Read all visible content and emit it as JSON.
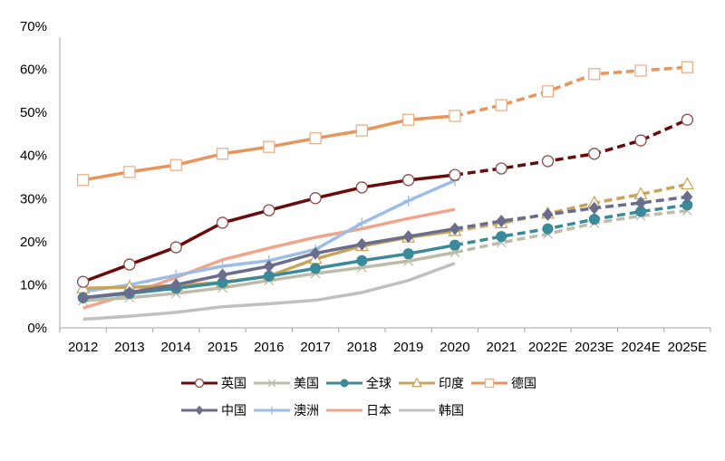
{
  "chart_data": {
    "type": "line",
    "title": "",
    "xlabel": "",
    "ylabel": "",
    "categories": [
      "2012",
      "2013",
      "2014",
      "2015",
      "2016",
      "2017",
      "2018",
      "2019",
      "2020",
      "2021",
      "2022E",
      "2023E",
      "2024E",
      "2025E"
    ],
    "ylim": [
      0,
      70
    ],
    "yticks": [
      "0%",
      "10%",
      "20%",
      "30%",
      "40%",
      "50%",
      "60%",
      "70%"
    ],
    "ytick_values": [
      0,
      10,
      20,
      30,
      40,
      50,
      60,
      70
    ],
    "grid": false,
    "forecast_start_index": 8,
    "legend_position": "bottom",
    "series": [
      {
        "name": "英国",
        "color": "#6b0a0a",
        "marker": "circle-open",
        "dashed_forecast": true,
        "values": [
          10.7,
          14.7,
          18.7,
          24.4,
          27.3,
          30.1,
          32.6,
          34.3,
          35.5,
          37.0,
          38.7,
          40.4,
          43.5,
          48.3
        ]
      },
      {
        "name": "美国",
        "color": "#bdbcaa",
        "marker": "x",
        "dashed_forecast": true,
        "values": [
          6.3,
          7.0,
          8.0,
          9.3,
          11.0,
          12.6,
          14.0,
          15.5,
          17.5,
          19.8,
          21.8,
          24.3,
          26.0,
          27.2
        ]
      },
      {
        "name": "全球",
        "color": "#3a8a9a",
        "marker": "dot",
        "dashed_forecast": true,
        "values": [
          7.0,
          8.0,
          9.2,
          10.5,
          12.0,
          13.8,
          15.6,
          17.2,
          19.2,
          21.2,
          23.0,
          25.2,
          27.0,
          28.5
        ]
      },
      {
        "name": "印度",
        "color": "#c8a45a",
        "marker": "triangle-open",
        "dashed_forecast": true,
        "values": [
          9.2,
          9.4,
          9.8,
          10.6,
          12.0,
          16.0,
          19.0,
          21.0,
          22.5,
          24.3,
          26.5,
          29.0,
          31.0,
          33.3
        ]
      },
      {
        "name": "德国",
        "color": "#e8945a",
        "marker": "square-open",
        "dashed_forecast": true,
        "values": [
          34.3,
          36.2,
          37.8,
          40.4,
          42.0,
          44.0,
          45.8,
          48.3,
          49.2,
          51.7,
          54.9,
          58.9,
          59.7,
          60.5
        ]
      },
      {
        "name": "中国",
        "color": "#6a6e8c",
        "marker": "diamond",
        "dashed_forecast": true,
        "values": [
          7.0,
          8.2,
          10.0,
          12.3,
          14.3,
          17.3,
          19.4,
          21.2,
          23.0,
          24.8,
          26.3,
          27.8,
          29.0,
          30.4
        ]
      },
      {
        "name": "澳洲",
        "color": "#9dbde6",
        "marker": "plus",
        "dashed_forecast": false,
        "values": [
          8.4,
          10.0,
          12.2,
          14.3,
          15.6,
          18.2,
          24.3,
          29.5,
          34.2,
          null,
          null,
          null,
          null,
          null
        ]
      },
      {
        "name": "日本",
        "color": "#f0a48c",
        "marker": "none",
        "dashed_forecast": false,
        "values": [
          4.6,
          7.8,
          11.7,
          15.8,
          18.5,
          21.0,
          23.0,
          25.4,
          27.5,
          null,
          null,
          null,
          null,
          null
        ]
      },
      {
        "name": "韩国",
        "color": "#c0c0c0",
        "marker": "none",
        "dashed_forecast": false,
        "values": [
          2.0,
          2.7,
          3.6,
          4.9,
          5.6,
          6.4,
          8.2,
          11.0,
          15.0,
          null,
          null,
          null,
          null,
          null
        ]
      }
    ],
    "legend_rows": [
      [
        0,
        1,
        2,
        3,
        4
      ],
      [
        5,
        6,
        7,
        8
      ]
    ]
  }
}
